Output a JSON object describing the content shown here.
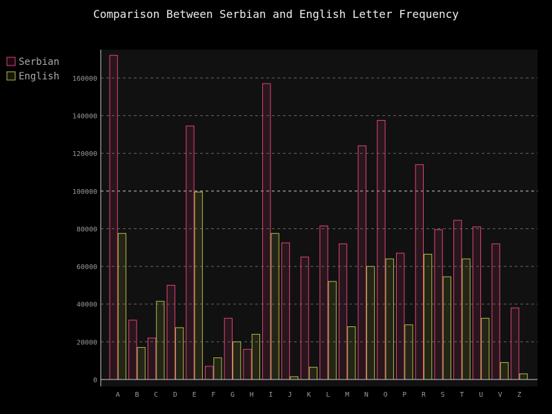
{
  "chart_data": {
    "type": "bar",
    "title": "Comparison Between Serbian and English Letter Frequency",
    "xlabel": "",
    "ylabel": "",
    "categories": [
      "A",
      "B",
      "C",
      "D",
      "E",
      "F",
      "G",
      "H",
      "I",
      "J",
      "K",
      "L",
      "M",
      "N",
      "O",
      "P",
      "R",
      "S",
      "T",
      "U",
      "V",
      "Z"
    ],
    "series": [
      {
        "name": "Serbian",
        "color": "#e0457b",
        "values": [
          172000,
          31500,
          22000,
          50000,
          134500,
          7000,
          32500,
          16000,
          157000,
          72500,
          65000,
          81500,
          72000,
          124000,
          137500,
          67000,
          114000,
          79500,
          84500,
          81000,
          72000,
          38000
        ]
      },
      {
        "name": "English",
        "color": "#b5bd46",
        "values": [
          77500,
          17000,
          41500,
          27500,
          99500,
          11500,
          20000,
          24000,
          77500,
          1500,
          6500,
          52000,
          28000,
          60000,
          64000,
          29000,
          66500,
          54500,
          64000,
          32500,
          9000,
          3000
        ]
      }
    ],
    "y_ticks": [
      "0",
      "20000",
      "40000",
      "60000",
      "80000",
      "100000",
      "120000",
      "140000",
      "160000"
    ],
    "ylim": [
      0,
      175000
    ],
    "grid": true,
    "legend_position": "top-left"
  }
}
